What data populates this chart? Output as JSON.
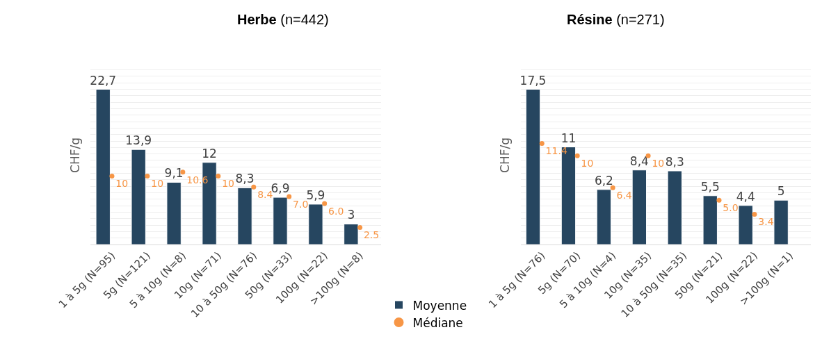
{
  "chart_data": [
    {
      "type": "bar",
      "title": "Herbe (n=442)",
      "ylabel": "CHF/g",
      "categories": [
        "1 à 5g (N=95)",
        "5g (N=121)",
        "5 à 10g (N=8)",
        "10g (N=71)",
        "10 à 50g (N=76)",
        "50g (N=33)",
        "100g (N=22)",
        ">100g (N=8)"
      ],
      "grid": "y",
      "tick_labels": "x",
      "legend": "bottom",
      "series": [
        {
          "name": "Moyenne",
          "color": "#264660",
          "values": [
            22.7,
            13.9,
            9.1,
            12,
            8.3,
            6.9,
            5.9,
            3
          ],
          "value_labels": [
            "22,7",
            "13,9",
            "9,1",
            "12",
            "8,3",
            "6,9",
            "5,9",
            "3"
          ]
        },
        {
          "name": "Médiane",
          "type": "scatter",
          "color": "#f79646",
          "values": [
            10,
            10,
            10.6,
            10,
            8.4,
            7.0,
            6.0,
            2.5
          ],
          "value_labels": [
            "10",
            "10",
            "10.6",
            "10",
            "8.4",
            "7.0",
            "6.0",
            "2.5"
          ]
        }
      ]
    },
    {
      "type": "bar",
      "title": "Résine (n=271)",
      "ylabel": "CHF/g",
      "categories": [
        "1 à 5g (N=76)",
        "5g (N=70)",
        "5 à 10g (N=4)",
        "10g (N=35)",
        "10 à 50g (N=35)",
        "50g (N=21)",
        "100g (N=22)",
        ">100g (N=1)"
      ],
      "grid": "y",
      "tick_labels": "x",
      "series": [
        {
          "color": "#264660",
          "values": [
            17.5,
            11,
            6.2,
            8.4,
            8.3,
            5.5,
            4.4,
            5
          ],
          "value_labels": [
            "17,5",
            "11",
            "6,2",
            "8,4",
            "8,3",
            "5,5",
            "4,4",
            "5"
          ]
        },
        {
          "type": "scatter",
          "color": "#f79646",
          "values": [
            11.4,
            10,
            6.4,
            10,
            null,
            5.0,
            3.4,
            null
          ],
          "value_labels": [
            "11.4",
            "10",
            "6.4",
            "10",
            null,
            "5.0",
            "3.4",
            null
          ]
        }
      ]
    }
  ]
}
